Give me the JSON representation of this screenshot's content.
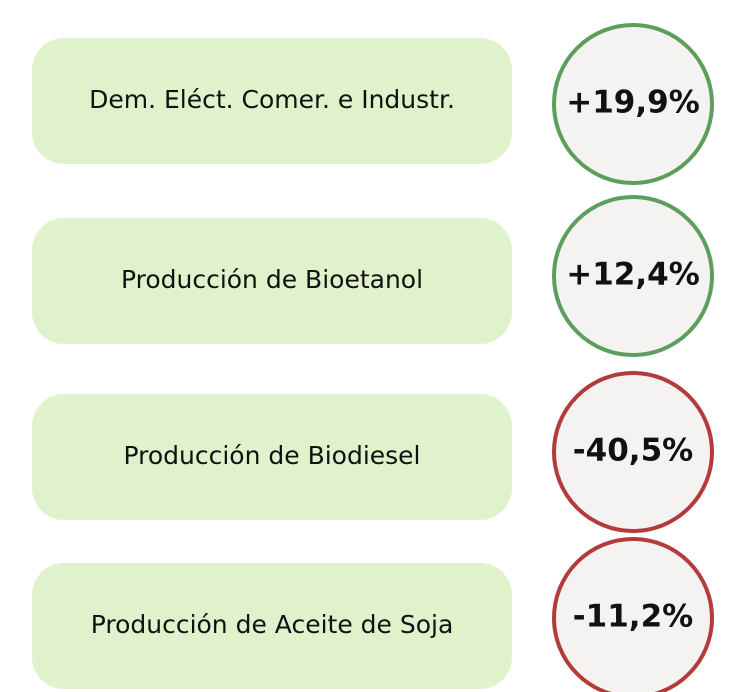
{
  "items": [
    {
      "label": "Dem. Eléct. Comer. e Industr.",
      "value": "+19,9%",
      "color": "#5c9e5c"
    },
    {
      "label": "Producción de Bioetanol",
      "value": "+12,4%",
      "color": "#5c9e5c"
    },
    {
      "label": "Producción de Biodiesel",
      "value": "-40,5%",
      "color": "#b33b3b"
    },
    {
      "label": "Producción de Aceite de Soja",
      "value": "-11,2%",
      "color": "#b33b3b"
    }
  ]
}
